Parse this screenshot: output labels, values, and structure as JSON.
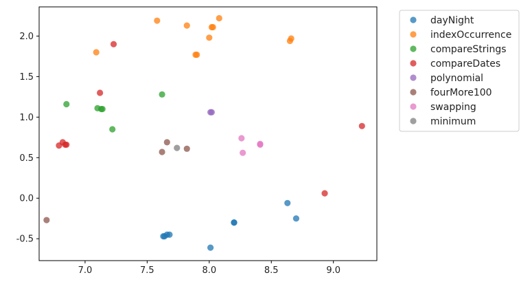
{
  "chart_data": {
    "type": "scatter",
    "title": "",
    "xlabel": "",
    "ylabel": "",
    "xlim": [
      6.63,
      9.35
    ],
    "ylim": [
      -0.77,
      2.36
    ],
    "x_ticks": [
      "7.0",
      "7.5",
      "8.0",
      "8.5",
      "9.0"
    ],
    "y_ticks": [
      "-0.5",
      "0.0",
      "0.5",
      "1.0",
      "1.5",
      "2.0"
    ],
    "x_tick_values": [
      7.0,
      7.5,
      8.0,
      8.5,
      9.0
    ],
    "y_tick_values": [
      -0.5,
      0.0,
      0.5,
      1.0,
      1.5,
      2.0
    ],
    "grid": false,
    "legend_position": "outside-right",
    "series": [
      {
        "name": "dayNight",
        "color": "#1f77b4",
        "points": [
          [
            7.63,
            -0.47
          ],
          [
            7.64,
            -0.47
          ],
          [
            7.66,
            -0.45
          ],
          [
            7.68,
            -0.45
          ],
          [
            8.01,
            -0.61
          ],
          [
            8.2,
            -0.3
          ],
          [
            8.2,
            -0.3
          ],
          [
            8.63,
            -0.06
          ],
          [
            8.7,
            -0.25
          ]
        ]
      },
      {
        "name": "indexOccurrence",
        "color": "#ff7f0e",
        "points": [
          [
            7.09,
            1.8
          ],
          [
            7.58,
            2.19
          ],
          [
            7.82,
            2.13
          ],
          [
            7.89,
            1.77
          ],
          [
            7.9,
            1.77
          ],
          [
            8.0,
            1.98
          ],
          [
            8.02,
            2.11
          ],
          [
            8.03,
            2.11
          ],
          [
            8.08,
            2.22
          ],
          [
            8.65,
            1.94
          ],
          [
            8.66,
            1.97
          ]
        ]
      },
      {
        "name": "compareStrings",
        "color": "#2ca02c",
        "points": [
          [
            6.85,
            1.16
          ],
          [
            7.1,
            1.11
          ],
          [
            7.13,
            1.1
          ],
          [
            7.14,
            1.1
          ],
          [
            7.22,
            0.85
          ],
          [
            7.62,
            1.28
          ]
        ]
      },
      {
        "name": "compareDates",
        "color": "#d62728",
        "points": [
          [
            6.79,
            0.65
          ],
          [
            6.82,
            0.69
          ],
          [
            6.84,
            0.66
          ],
          [
            6.85,
            0.66
          ],
          [
            7.12,
            1.3
          ],
          [
            7.23,
            1.9
          ],
          [
            8.93,
            0.06
          ],
          [
            9.23,
            0.89
          ]
        ]
      },
      {
        "name": "polynomial",
        "color": "#9467bd",
        "points": [
          [
            8.01,
            1.06
          ],
          [
            8.02,
            1.06
          ]
        ]
      },
      {
        "name": "fourMore100",
        "color": "#8c564b",
        "points": [
          [
            6.69,
            -0.27
          ],
          [
            7.62,
            0.57
          ],
          [
            7.66,
            0.69
          ],
          [
            7.82,
            0.61
          ]
        ]
      },
      {
        "name": "swapping",
        "color": "#e377c2",
        "points": [
          [
            8.26,
            0.74
          ],
          [
            8.27,
            0.56
          ],
          [
            8.41,
            0.66
          ],
          [
            8.41,
            0.67
          ]
        ]
      },
      {
        "name": "minimum",
        "color": "#7f7f7f",
        "points": [
          [
            7.74,
            0.62
          ]
        ]
      }
    ]
  }
}
